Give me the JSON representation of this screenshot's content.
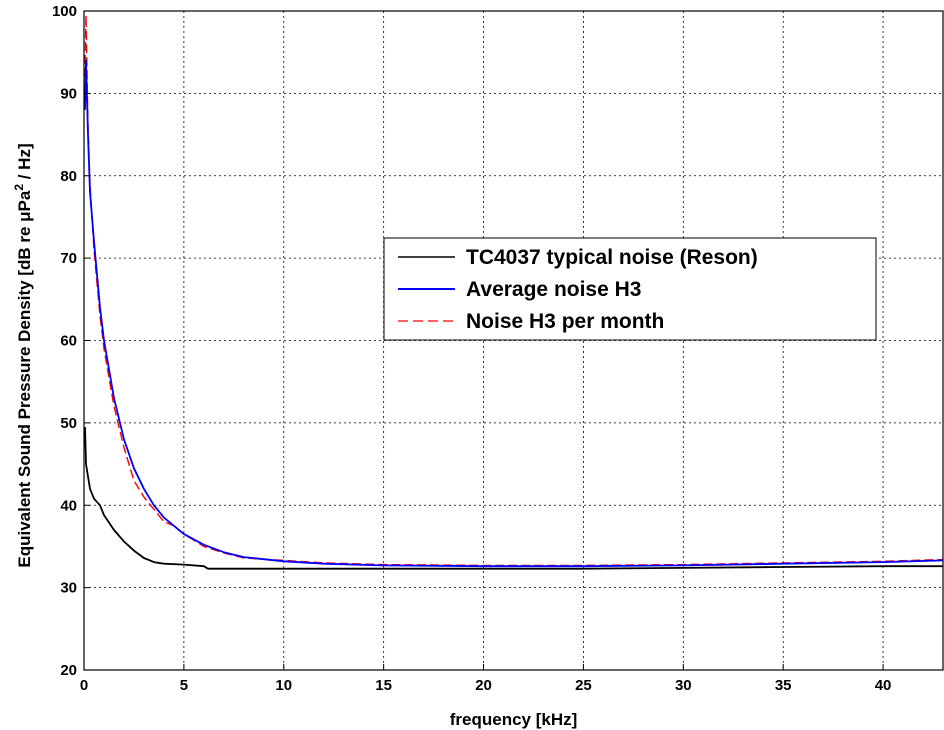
{
  "chart_data": {
    "type": "line",
    "title": "",
    "xlabel": "frequency [kHz]",
    "ylabel_main": "Equivalent Sound Pressure Density [dB re  μPa",
    "ylabel_sup": "2",
    "ylabel_tail": " / Hz]",
    "xlim": [
      0,
      43
    ],
    "ylim": [
      20,
      100
    ],
    "xticks": [
      0,
      5,
      10,
      15,
      20,
      25,
      30,
      35,
      40
    ],
    "yticks": [
      20,
      30,
      40,
      50,
      60,
      70,
      80,
      90,
      100
    ],
    "grid": true,
    "legend_position": "center-right",
    "series": [
      {
        "name": "TC4037 typical noise (Reson)",
        "color": "#000000",
        "style": "solid",
        "x": [
          0.05,
          0.1,
          0.3,
          0.5,
          0.8,
          1.0,
          1.5,
          2.0,
          2.5,
          3.0,
          3.5,
          4.0,
          5.0,
          6.0,
          6.2,
          8,
          10,
          15,
          20,
          25,
          30,
          35,
          40,
          43
        ],
        "y": [
          49.5,
          45,
          42,
          40.8,
          40,
          38.8,
          37,
          35.6,
          34.5,
          33.6,
          33.1,
          32.9,
          32.8,
          32.6,
          32.3,
          32.3,
          32.3,
          32.3,
          32.3,
          32.3,
          32.4,
          32.5,
          32.6,
          32.6
        ]
      },
      {
        "name": "Average noise H3",
        "color": "#0000ff",
        "style": "solid",
        "x": [
          0.05,
          0.1,
          0.2,
          0.3,
          0.5,
          0.8,
          1.0,
          1.5,
          2.0,
          2.5,
          3.0,
          3.5,
          4.0,
          5.0,
          6.0,
          7.0,
          8.0,
          10,
          12,
          15,
          20,
          25,
          30,
          35,
          40,
          43
        ],
        "y": [
          88,
          94,
          85,
          78,
          72,
          64,
          60,
          53,
          48,
          44.5,
          42,
          40,
          38.5,
          36.5,
          35.2,
          34.3,
          33.7,
          33.2,
          32.9,
          32.7,
          32.6,
          32.6,
          32.7,
          32.9,
          33.1,
          33.3
        ]
      },
      {
        "name": "Noise H3 per month",
        "color": "#ff0000",
        "style": "dashed",
        "x": [
          0.05,
          0.1,
          0.2,
          0.3,
          0.5,
          0.8,
          1.0,
          1.5,
          2.0,
          2.5,
          3.0,
          3.5,
          4.0,
          4.5,
          5.0,
          6.0,
          7.0,
          8.0,
          10,
          12,
          15,
          20,
          25,
          30,
          35,
          40,
          43
        ],
        "y": [
          92,
          99.5,
          86,
          79,
          71,
          63,
          59,
          52,
          47,
          43,
          41,
          39.5,
          38,
          37.5,
          36.5,
          35,
          34.2,
          33.6,
          33.3,
          33.0,
          32.8,
          32.7,
          32.7,
          32.8,
          33.0,
          33.2,
          33.4
        ]
      }
    ]
  }
}
